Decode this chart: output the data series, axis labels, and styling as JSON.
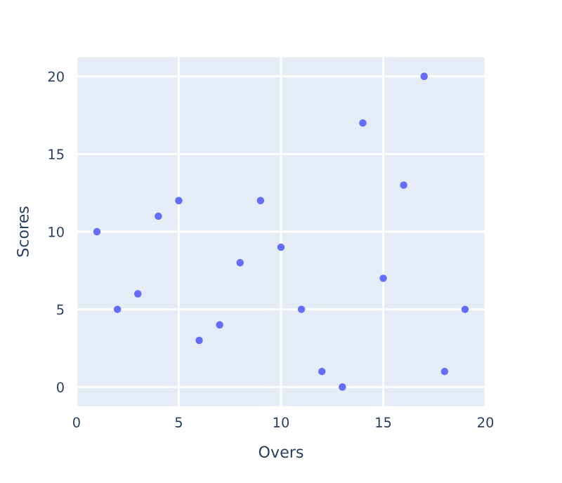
{
  "chart_data": {
    "type": "scatter",
    "xlabel": "Overs",
    "ylabel": "Scores",
    "x": [
      1,
      2,
      3,
      4,
      5,
      6,
      7,
      8,
      9,
      10,
      11,
      12,
      13,
      14,
      15,
      16,
      17,
      18,
      19
    ],
    "series": [
      {
        "color": "#636efa",
        "values": [
          10,
          5,
          6,
          11,
          12,
          3,
          4,
          8,
          12,
          9,
          5,
          1,
          0,
          17,
          7,
          13,
          20,
          1,
          5
        ]
      }
    ],
    "xlim": [
      -0.1,
      20.1
    ],
    "xticks": [
      0,
      5,
      10,
      15,
      20
    ],
    "ylim": [
      -1.3,
      21.3
    ],
    "yticks": [
      0,
      5,
      10,
      15,
      20
    ],
    "grid": true,
    "marker": "circle"
  }
}
